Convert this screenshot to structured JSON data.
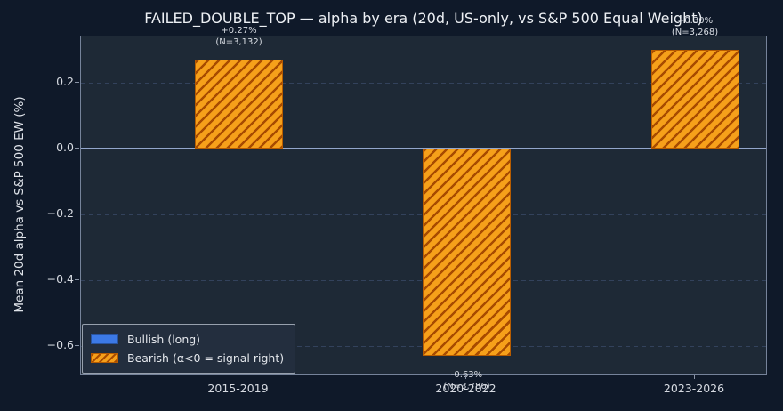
{
  "chart_data": {
    "type": "bar",
    "title": "FAILED_DOUBLE_TOP — alpha by era (20d, US-only, vs S&P 500 Equal Weight)",
    "ylabel": "Mean 20d alpha vs S&P 500 EW (%)",
    "categories": [
      "2015-2019",
      "2020-2022",
      "2023-2026"
    ],
    "series": [
      {
        "name": "Bearish (α<0 = signal right)",
        "values": [
          0.27,
          -0.63,
          0.3
        ]
      }
    ],
    "bar_labels": [
      {
        "value": "+0.27%",
        "n": "(N=3,132)"
      },
      {
        "value": "-0.63%",
        "n": "(N=3,786)"
      },
      {
        "value": "+0.30%",
        "n": "(N=3,268)"
      }
    ],
    "yticks": [
      {
        "value": 0.2,
        "label": "0.2"
      },
      {
        "value": 0.0,
        "label": "0.0"
      },
      {
        "value": -0.2,
        "label": "−0.2"
      },
      {
        "value": -0.4,
        "label": "−0.4"
      },
      {
        "value": -0.6,
        "label": "−0.6"
      }
    ],
    "ylim": [
      -0.69,
      0.34
    ],
    "grid": "horizontal-dashed",
    "legend": {
      "position": "lower-left",
      "entries": [
        {
          "label": "Bullish (long)",
          "style": "solid",
          "color": "#3c79e6"
        },
        {
          "label": "Bearish (α<0 = signal right)",
          "style": "hatched",
          "color": "#f6a01a"
        }
      ]
    },
    "colors": {
      "background": "#0f1929",
      "plot_background": "#1e2936",
      "bar_fill": "#f6a01a",
      "bar_hatch": "#a84b00",
      "bar_edge": "#b85c00",
      "zero_line": "#93a6cc",
      "bullish_blue": "#3c79e6"
    }
  }
}
